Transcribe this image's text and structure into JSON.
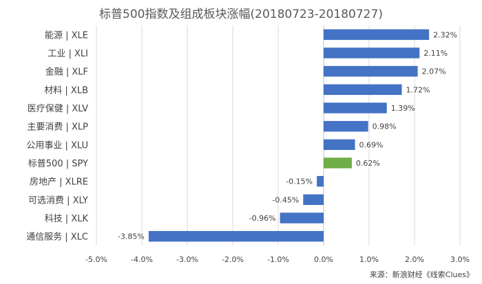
{
  "chart_data": {
    "type": "bar",
    "orientation": "horizontal",
    "title": "标普500指数及组成板块涨幅(20180723-20180727)",
    "categories": [
      "能源 | XLE",
      "工业 | XLI",
      "金融 | XLF",
      "材料 | XLB",
      "医疗保健 | XLV",
      "主要消费 | XLP",
      "公用事业 | XLU",
      "标普500 | SPY",
      "房地产 | XLRE",
      "可选消费 | XLY",
      "科技 | XLK",
      "通信服务 | XLC"
    ],
    "values": [
      2.32,
      2.11,
      2.07,
      1.72,
      1.39,
      0.98,
      0.69,
      0.62,
      -0.15,
      -0.45,
      -0.96,
      -3.85
    ],
    "data_labels": [
      "2.32%",
      "2.11%",
      "2.07%",
      "1.72%",
      "1.39%",
      "0.98%",
      "0.69%",
      "0.62%",
      "-0.15%",
      "-0.45%",
      "-0.96%",
      "-3.85%"
    ],
    "xlim": [
      -5.0,
      3.0
    ],
    "xticks": [
      -5.0,
      -4.0,
      -3.0,
      -2.0,
      -1.0,
      0.0,
      1.0,
      2.0,
      3.0
    ],
    "xtick_labels": [
      "-5.0%",
      "-4.0%",
      "-3.0%",
      "-2.0%",
      "-1.0%",
      "0.0%",
      "1.0%",
      "2.0%",
      "3.0%"
    ],
    "grid": true,
    "bar_color": "#4472C4",
    "highlight_color": "#70AD47",
    "highlight_category": "标普500 | SPY"
  },
  "source": "来源：新浪财经《线索Clues》"
}
